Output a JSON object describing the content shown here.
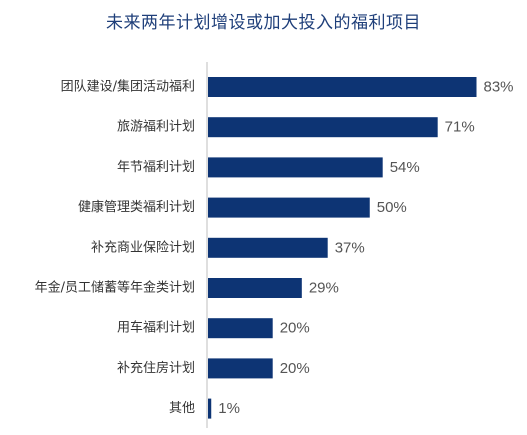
{
  "chart_data": {
    "type": "bar",
    "orientation": "horizontal",
    "title": "未来两年计划增设或加大投入的福利项目",
    "categories": [
      "团队建设/集团活动福利",
      "旅游福利计划",
      "年节福利计划",
      "健康管理类福利计划",
      "补充商业保险计划",
      "年金/员工储蓄等年金类计划",
      "用车福利计划",
      "补充住房计划",
      "其他"
    ],
    "values": [
      83,
      71,
      54,
      50,
      37,
      29,
      20,
      20,
      1
    ],
    "value_labels": [
      "83%",
      "71%",
      "54%",
      "50%",
      "37%",
      "29%",
      "20%",
      "20%",
      "1%"
    ],
    "unit": "%",
    "xlim": [
      0,
      100
    ],
    "grid": false,
    "legend": "none",
    "bar_color": "#0d3474",
    "axis_color": "#bfbfbf"
  }
}
